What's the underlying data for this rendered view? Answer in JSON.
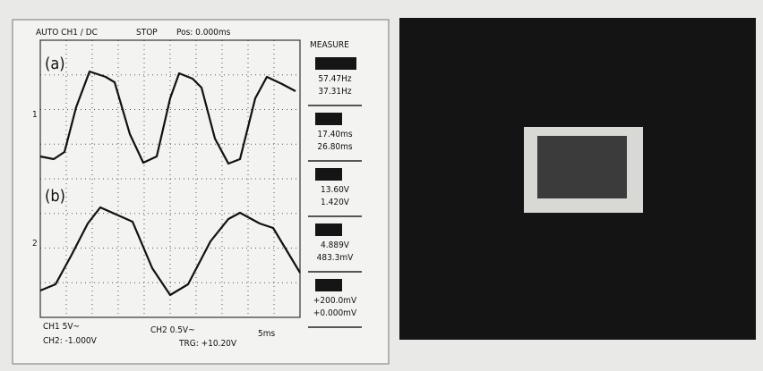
{
  "header": {
    "mode": "AUTO CH1 / DC",
    "status": "STOP",
    "position": "Pos: 0.000ms"
  },
  "traces": {
    "a": "(a)",
    "b": "(b)",
    "marker_1": "1",
    "marker_2": "2"
  },
  "measure": {
    "title": "MEASURE",
    "items": [
      [
        "57.47Hz",
        "37.31Hz"
      ],
      [
        "17.40ms",
        "26.80ms"
      ],
      [
        "13.60V",
        "1.420V"
      ],
      [
        "4.889V",
        "483.3mV"
      ],
      [
        "+200.0mV",
        "+0.000mV"
      ]
    ]
  },
  "footer": {
    "ch1": "CH1 5V~",
    "ch2": "CH2 0.5V~",
    "timebase": "5ms",
    "ch2_offset": "CH2: -1.000V",
    "trigger": "TRG: +10.20V"
  }
}
